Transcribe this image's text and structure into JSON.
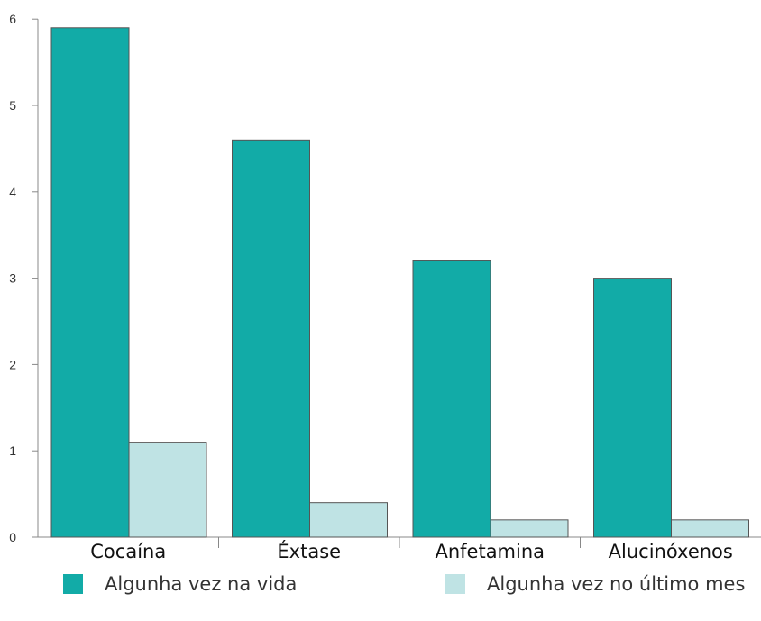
{
  "chart_data": {
    "type": "bar",
    "categories": [
      "Cocaína",
      "Éxtase",
      "Anfetamina",
      "Alucinóxenos"
    ],
    "series": [
      {
        "name": "Algunha vez na vida",
        "values": [
          5.9,
          4.6,
          3.2,
          3.0
        ],
        "color": "#12aba7"
      },
      {
        "name": "Algunha vez no último mes",
        "values": [
          1.1,
          0.4,
          0.2,
          0.2
        ],
        "color": "#bfe3e4"
      }
    ],
    "yticks": [
      "0",
      "1",
      "2",
      "3",
      "4",
      "5",
      "6"
    ],
    "ylim": [
      0,
      6
    ],
    "grid": false,
    "legend_position": "bottom"
  }
}
